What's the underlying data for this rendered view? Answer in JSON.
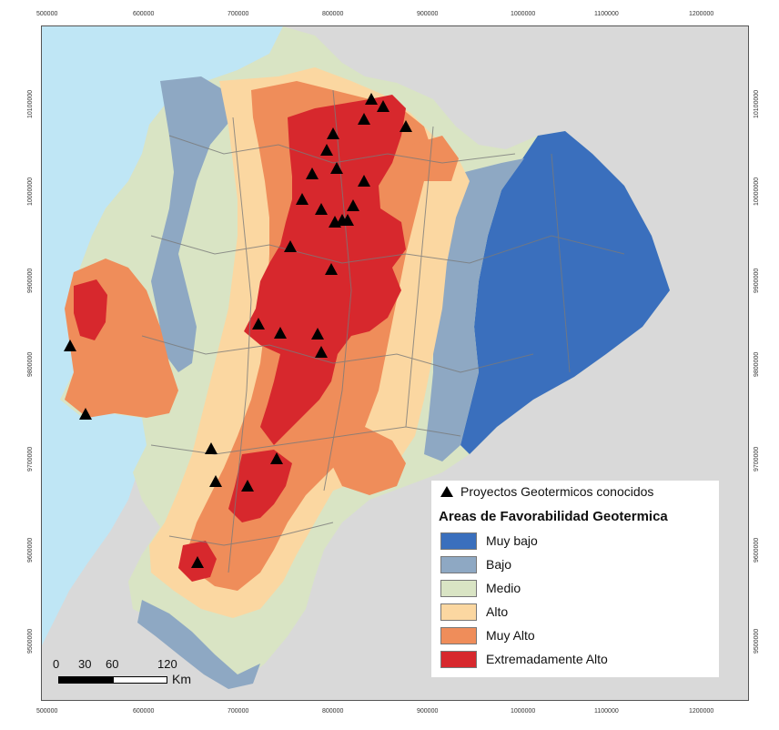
{
  "map": {
    "x_ticks_top": [
      "500000",
      "600000",
      "700000",
      "800000",
      "900000",
      "1000000",
      "1100000",
      "1200000"
    ],
    "x_ticks_bottom": [
      "500000",
      "600000",
      "700000",
      "800000",
      "900000",
      "1000000",
      "1100000",
      "1200000"
    ],
    "y_ticks": [
      "10100000",
      "10000000",
      "9900000",
      "9800000",
      "9700000",
      "9600000",
      "9500000"
    ],
    "colors": {
      "sea": "#bfe6f5",
      "background": "#d9d9d9",
      "muy_bajo": "#3a6fbd",
      "bajo": "#8ea8c3",
      "medio": "#d9e4c4",
      "alto": "#fbd7a1",
      "muy_alto": "#ef8d5a",
      "extremadamente_alto": "#d7282d",
      "boundary": "#7a7a7a"
    },
    "projects_count": 27
  },
  "legend": {
    "known_projects": "Proyectos Geotermicos conocidos",
    "title": "Areas de Favorabilidad Geotermica",
    "classes": [
      {
        "label": "Muy bajo",
        "color": "#3a6fbd"
      },
      {
        "label": "Bajo",
        "color": "#8ea8c3"
      },
      {
        "label": "Medio",
        "color": "#d9e4c4"
      },
      {
        "label": "Alto",
        "color": "#fbd7a1"
      },
      {
        "label": "Muy Alto",
        "color": "#ef8d5a"
      },
      {
        "label": "Extremadamente Alto",
        "color": "#d7282d"
      }
    ]
  },
  "scale": {
    "labels": [
      "0",
      "30",
      "60",
      "120"
    ],
    "unit": "Km"
  }
}
